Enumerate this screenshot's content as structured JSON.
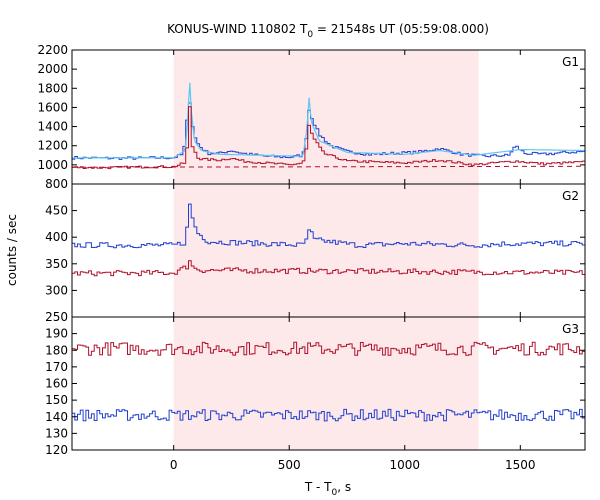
{
  "chart_data": {
    "type": "line",
    "title_main": "KONUS-WIND 110802 T",
    "title_sub": "0",
    "title_rest": " = 21548s UT (05:59:08.000)",
    "ylabel": "counts / sec",
    "xlabel_main": "T - T",
    "xlabel_sub": "0",
    "xlabel_rest": ", s",
    "xlim": [
      -440,
      1780
    ],
    "x_ticks": [
      0,
      500,
      1000,
      1500
    ],
    "shaded_interval": [
      0,
      1320
    ],
    "colors": {
      "shade": "#fde8ea",
      "blue": "#1f3fcf",
      "light_blue": "#5ec8f0",
      "red": "#b0102a"
    },
    "panels": [
      {
        "label": "G1",
        "ylim": [
          800,
          2200
        ],
        "y_ticks": [
          800,
          1000,
          1200,
          1400,
          1600,
          1800,
          2000,
          2200
        ],
        "series": [
          {
            "color": "blue",
            "noise": 15,
            "base": 1065,
            "points": [
              [
                -440,
                1075
              ],
              [
                -300,
                1070
              ],
              [
                -150,
                1070
              ],
              [
                0,
                1075
              ],
              [
                40,
                1110
              ],
              [
                55,
                1300
              ],
              [
                65,
                1820
              ],
              [
                75,
                1500
              ],
              [
                90,
                1300
              ],
              [
                110,
                1200
              ],
              [
                150,
                1120
              ],
              [
                200,
                1120
              ],
              [
                250,
                1150
              ],
              [
                300,
                1120
              ],
              [
                400,
                1090
              ],
              [
                500,
                1080
              ],
              [
                560,
                1100
              ],
              [
                575,
                1300
              ],
              [
                585,
                1580
              ],
              [
                600,
                1480
              ],
              [
                630,
                1320
              ],
              [
                680,
                1200
              ],
              [
                750,
                1140
              ],
              [
                850,
                1110
              ],
              [
                950,
                1120
              ],
              [
                1050,
                1130
              ],
              [
                1100,
                1150
              ],
              [
                1150,
                1170
              ],
              [
                1250,
                1110
              ],
              [
                1350,
                1090
              ],
              [
                1450,
                1100
              ],
              [
                1480,
                1200
              ],
              [
                1520,
                1120
              ],
              [
                1600,
                1110
              ],
              [
                1700,
                1130
              ],
              [
                1780,
                1140
              ]
            ]
          },
          {
            "color": "light_blue",
            "noise": 0,
            "base": 0,
            "points": [
              [
                -440,
                1072
              ],
              [
                0,
                1075
              ],
              [
                50,
                1150
              ],
              [
                62,
                1500
              ],
              [
                68,
                1960
              ],
              [
                75,
                1600
              ],
              [
                90,
                1250
              ],
              [
                120,
                1150
              ],
              [
                200,
                1110
              ],
              [
                560,
                1090
              ],
              [
                578,
                1400
              ],
              [
                585,
                1730
              ],
              [
                595,
                1450
              ],
              [
                630,
                1250
              ],
              [
                750,
                1130
              ],
              [
                1000,
                1110
              ],
              [
                1150,
                1150
              ],
              [
                1300,
                1100
              ],
              [
                1500,
                1160
              ],
              [
                1780,
                1150
              ]
            ]
          },
          {
            "color": "red",
            "noise": 12,
            "base": 970,
            "points": [
              [
                -440,
                975
              ],
              [
                -300,
                970
              ],
              [
                -100,
                980
              ],
              [
                0,
                980
              ],
              [
                50,
                1020
              ],
              [
                62,
                1250
              ],
              [
                68,
                1680
              ],
              [
                80,
                1200
              ],
              [
                110,
                1060
              ],
              [
                200,
                1050
              ],
              [
                250,
                1070
              ],
              [
                300,
                1040
              ],
              [
                500,
                1000
              ],
              [
                560,
                1020
              ],
              [
                578,
                1200
              ],
              [
                588,
                1460
              ],
              [
                600,
                1300
              ],
              [
                650,
                1120
              ],
              [
                750,
                1040
              ],
              [
                1000,
                1020
              ],
              [
                1150,
                1050
              ],
              [
                1300,
                1000
              ],
              [
                1480,
                1040
              ],
              [
                1600,
                1010
              ],
              [
                1780,
                1030
              ]
            ]
          },
          {
            "color": "red",
            "dashed": true,
            "noise": 0,
            "base": 0,
            "points": [
              [
                -440,
                975
              ],
              [
                1780,
                985
              ]
            ]
          }
        ]
      },
      {
        "label": "G2",
        "ylim": [
          250,
          500
        ],
        "y_ticks": [
          250,
          300,
          350,
          400,
          450
        ],
        "series": [
          {
            "color": "blue",
            "noise": 5,
            "base": 385,
            "points": [
              [
                -440,
                385
              ],
              [
                0,
                385
              ],
              [
                50,
                390
              ],
              [
                62,
                430
              ],
              [
                68,
                465
              ],
              [
                80,
                440
              ],
              [
                100,
                410
              ],
              [
                150,
                392
              ],
              [
                560,
                385
              ],
              [
                578,
                400
              ],
              [
                590,
                415
              ],
              [
                610,
                395
              ],
              [
                800,
                385
              ],
              [
                1000,
                388
              ],
              [
                1300,
                385
              ],
              [
                1450,
                388
              ],
              [
                1780,
                388
              ]
            ]
          },
          {
            "color": "red",
            "noise": 5,
            "base": 333,
            "points": [
              [
                -440,
                332
              ],
              [
                0,
                333
              ],
              [
                60,
                345
              ],
              [
                68,
                360
              ],
              [
                80,
                345
              ],
              [
                120,
                338
              ],
              [
                1780,
                333
              ]
            ]
          }
        ]
      },
      {
        "label": "G3",
        "ylim": [
          120,
          200
        ],
        "y_ticks": [
          120,
          130,
          140,
          150,
          160,
          170,
          180,
          190
        ],
        "series": [
          {
            "color": "red",
            "noise": 4,
            "base": 181,
            "points": [
              [
                -440,
                181
              ],
              [
                1780,
                181
              ]
            ]
          },
          {
            "color": "blue",
            "noise": 3.5,
            "base": 141,
            "points": [
              [
                -440,
                141
              ],
              [
                1780,
                141
              ]
            ]
          }
        ]
      }
    ]
  }
}
